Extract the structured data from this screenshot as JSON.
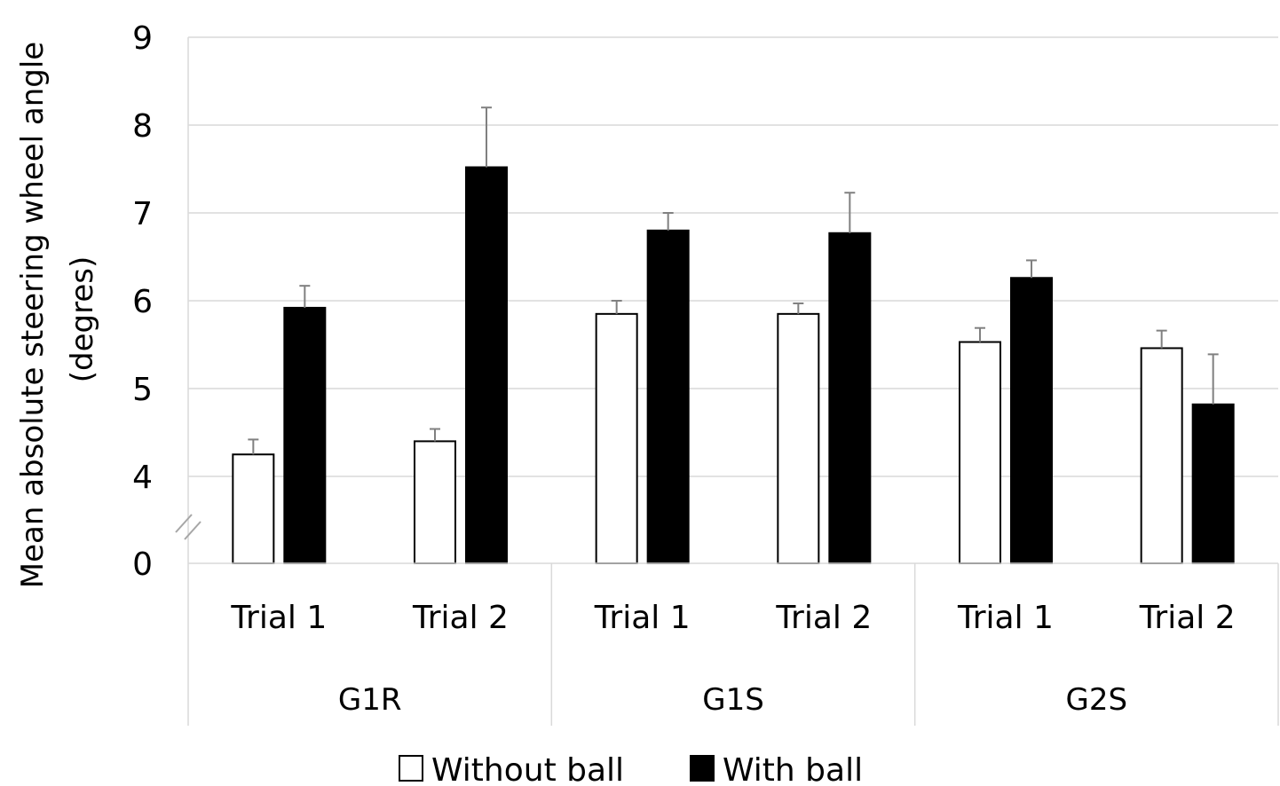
{
  "chart_data": {
    "type": "bar",
    "ylabel_lines": [
      "Mean absolute steering wheel angle",
      "(degres)"
    ],
    "y_ticks": [
      "0",
      "4",
      "5",
      "6",
      "7",
      "8",
      "9"
    ],
    "y_tick_values": [
      0,
      4,
      5,
      6,
      7,
      8,
      9
    ],
    "axis_break": true,
    "grid": true,
    "groups": [
      {
        "label": "G1R",
        "trials": [
          "Trial 1",
          "Trial 2"
        ]
      },
      {
        "label": "G1S",
        "trials": [
          "Trial 1",
          "Trial 2"
        ]
      },
      {
        "label": "G2S",
        "trials": [
          "Trial 1",
          "Trial 2"
        ]
      }
    ],
    "categories": [
      "G1R Trial 1",
      "G1R Trial 2",
      "G1S Trial 1",
      "G1S Trial 2",
      "G2S Trial 1",
      "G2S Trial 2"
    ],
    "series": [
      {
        "name": "Without ball",
        "color": "#ffffff",
        "values": [
          4.25,
          4.4,
          5.85,
          5.85,
          5.53,
          5.46
        ],
        "error": [
          0.17,
          0.14,
          0.15,
          0.12,
          0.16,
          0.2
        ]
      },
      {
        "name": "With ball",
        "color": "#000000",
        "values": [
          5.92,
          7.52,
          6.8,
          6.77,
          6.26,
          4.82
        ],
        "error": [
          0.25,
          0.68,
          0.2,
          0.46,
          0.2,
          0.57
        ]
      }
    ],
    "legend_position": "bottom"
  }
}
